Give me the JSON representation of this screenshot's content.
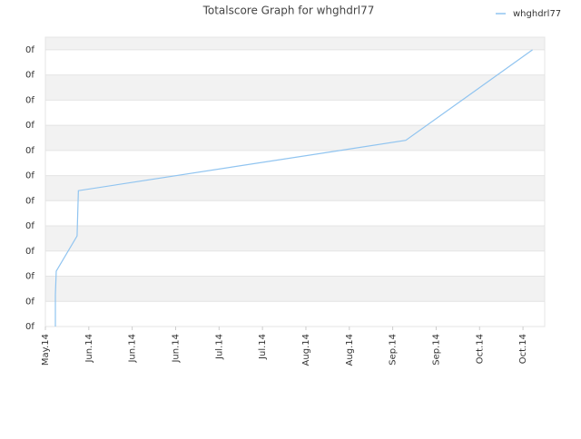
{
  "chart_data": {
    "type": "line",
    "title": "Totalscore Graph for whghdrl77",
    "x": [
      0.23,
      0.23,
      0.25,
      0.73,
      0.76,
      8.3,
      11.22
    ],
    "series": [
      {
        "name": "whghdrl77",
        "color": "#90c4f0",
        "values": [
          0,
          1.26,
          2.2,
          3.6,
          5.4,
          7.4,
          11
        ]
      }
    ],
    "xlim": [
      0,
      11.5
    ],
    "xticks": [
      {
        "value": 0,
        "label": "May.14"
      },
      {
        "value": 1,
        "label": "Jun.14"
      },
      {
        "value": 2,
        "label": "Jun.14"
      },
      {
        "value": 3,
        "label": "Jun.14"
      },
      {
        "value": 4,
        "label": "Jul.14"
      },
      {
        "value": 5,
        "label": "Jul.14"
      },
      {
        "value": 6,
        "label": "Aug.14"
      },
      {
        "value": 7,
        "label": "Aug.14"
      },
      {
        "value": 8,
        "label": "Sep.14"
      },
      {
        "value": 9,
        "label": "Sep.14"
      },
      {
        "value": 10,
        "label": "Oct.14"
      },
      {
        "value": 11,
        "label": "Oct.14"
      }
    ],
    "ylim": [
      0,
      11.5
    ],
    "yticks": [
      {
        "value": 0,
        "label": "0f"
      },
      {
        "value": 1,
        "label": "0f"
      },
      {
        "value": 2,
        "label": "0f"
      },
      {
        "value": 3,
        "label": "0f"
      },
      {
        "value": 4,
        "label": "0f"
      },
      {
        "value": 5,
        "label": "0f"
      },
      {
        "value": 6,
        "label": "0f"
      },
      {
        "value": 7,
        "label": "0f"
      },
      {
        "value": 8,
        "label": "0f"
      },
      {
        "value": 9,
        "label": "0f"
      },
      {
        "value": 10,
        "label": "0f"
      },
      {
        "value": 11,
        "label": "0f"
      }
    ],
    "grid": true,
    "legend": "top-right"
  }
}
